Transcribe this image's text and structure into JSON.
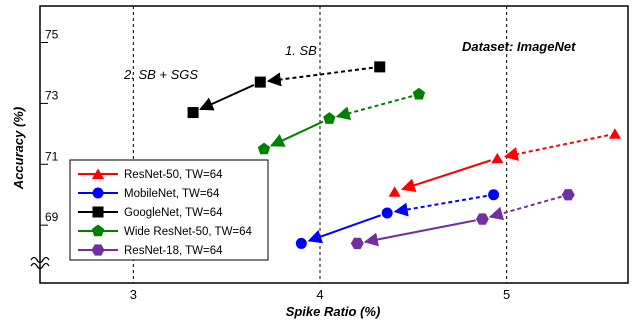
{
  "chart_data": {
    "type": "line",
    "xlabel": "Spike Ratio (%)",
    "ylabel": "Accuracy (%)",
    "xlim": [
      2.5,
      5.65
    ],
    "ylim": [
      67.1,
      76.2
    ],
    "x_ticks": [
      3,
      4,
      5
    ],
    "y_ticks": [
      69,
      71,
      73,
      75
    ],
    "grid": "vertical dashed",
    "axis_break": "bottom-left of y-axis",
    "legend_position": "bottom-left",
    "annotations": {
      "dataset": "Dataset: ImageNet",
      "step1": "1. SB",
      "step2": "2. SB + SGS"
    },
    "series": [
      {
        "name": "ResNet-50, TW=64",
        "color": "#ff0000",
        "marker": "triangle",
        "points": [
          [
            5.58,
            72.0
          ],
          [
            4.95,
            71.2
          ],
          [
            4.4,
            70.1
          ]
        ]
      },
      {
        "name": "MobileNet, TW=64",
        "color": "#0000ff",
        "marker": "circle",
        "points": [
          [
            4.93,
            70.0
          ],
          [
            4.36,
            69.4
          ],
          [
            3.9,
            68.4
          ]
        ]
      },
      {
        "name": "GoogleNet, TW=64",
        "color": "#000000",
        "marker": "square",
        "points": [
          [
            4.32,
            74.2
          ],
          [
            3.68,
            73.7
          ],
          [
            3.32,
            72.7
          ]
        ]
      },
      {
        "name": "Wide ResNet-50, TW=64",
        "color": "#008000",
        "marker": "pentagon",
        "points": [
          [
            4.53,
            73.3
          ],
          [
            4.05,
            72.5
          ],
          [
            3.7,
            71.5
          ]
        ]
      },
      {
        "name": "ResNet-18, TW=64",
        "color": "#7030a0",
        "marker": "hexagon",
        "points": [
          [
            5.33,
            70.0
          ],
          [
            4.87,
            69.2
          ],
          [
            4.2,
            68.4
          ]
        ]
      }
    ]
  }
}
